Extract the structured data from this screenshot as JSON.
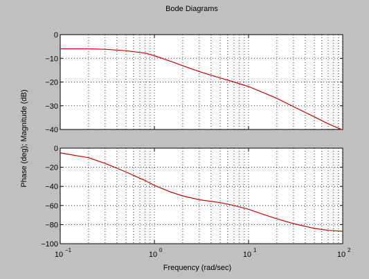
{
  "figure": {
    "title": "Bode Diagrams",
    "ylabel": "Phase (deg); Magnitude (dB)",
    "xlabel": "Frequency (rad/sec)"
  },
  "colors": {
    "figure_bg": "#c0c0c0",
    "axes_bg": "#ffffff",
    "curve": "#cc0000",
    "grid": "#000000"
  },
  "chart_data": [
    {
      "type": "line",
      "panel": "magnitude",
      "xscale": "log",
      "xlim": [
        0.1,
        100
      ],
      "ylim": [
        -40,
        0
      ],
      "yticks": [
        0,
        -10,
        -20,
        -30,
        -40
      ],
      "ytick_labels": [
        "0",
        "−10",
        "−20",
        "−30",
        "−40"
      ],
      "xtick_exponents": [],
      "grid": true,
      "series": [
        {
          "x": [
            0.1,
            0.2,
            0.3,
            0.5,
            0.8,
            1,
            1.5,
            2,
            3,
            5,
            7,
            10,
            15,
            20,
            30,
            50,
            70,
            100
          ],
          "y": [
            -6.0,
            -6.0,
            -6.2,
            -6.8,
            -7.8,
            -8.9,
            -11.3,
            -13.1,
            -15.6,
            -18.3,
            -20.0,
            -21.9,
            -24.8,
            -26.9,
            -30.4,
            -34.7,
            -37.6,
            -40.2
          ]
        }
      ]
    },
    {
      "type": "line",
      "panel": "phase",
      "xscale": "log",
      "xlim": [
        0.1,
        100
      ],
      "ylim": [
        -100,
        0
      ],
      "yticks": [
        0,
        -20,
        -40,
        -60,
        -80,
        -100
      ],
      "ytick_labels": [
        "0",
        "−20",
        "−40",
        "−60",
        "−80",
        "−100"
      ],
      "xtick_exponents": [
        "−1",
        "0",
        "1",
        "2"
      ],
      "xtick_base": "10",
      "grid": true,
      "series": [
        {
          "x": [
            0.1,
            0.2,
            0.3,
            0.5,
            0.8,
            1,
            1.5,
            2,
            3,
            5,
            7,
            10,
            15,
            20,
            30,
            50,
            70,
            100
          ],
          "y": [
            -5,
            -10,
            -16,
            -25,
            -34,
            -39,
            -46,
            -50,
            -54,
            -57,
            -60,
            -64,
            -70,
            -74,
            -79,
            -84,
            -86,
            -87
          ]
        }
      ]
    }
  ]
}
